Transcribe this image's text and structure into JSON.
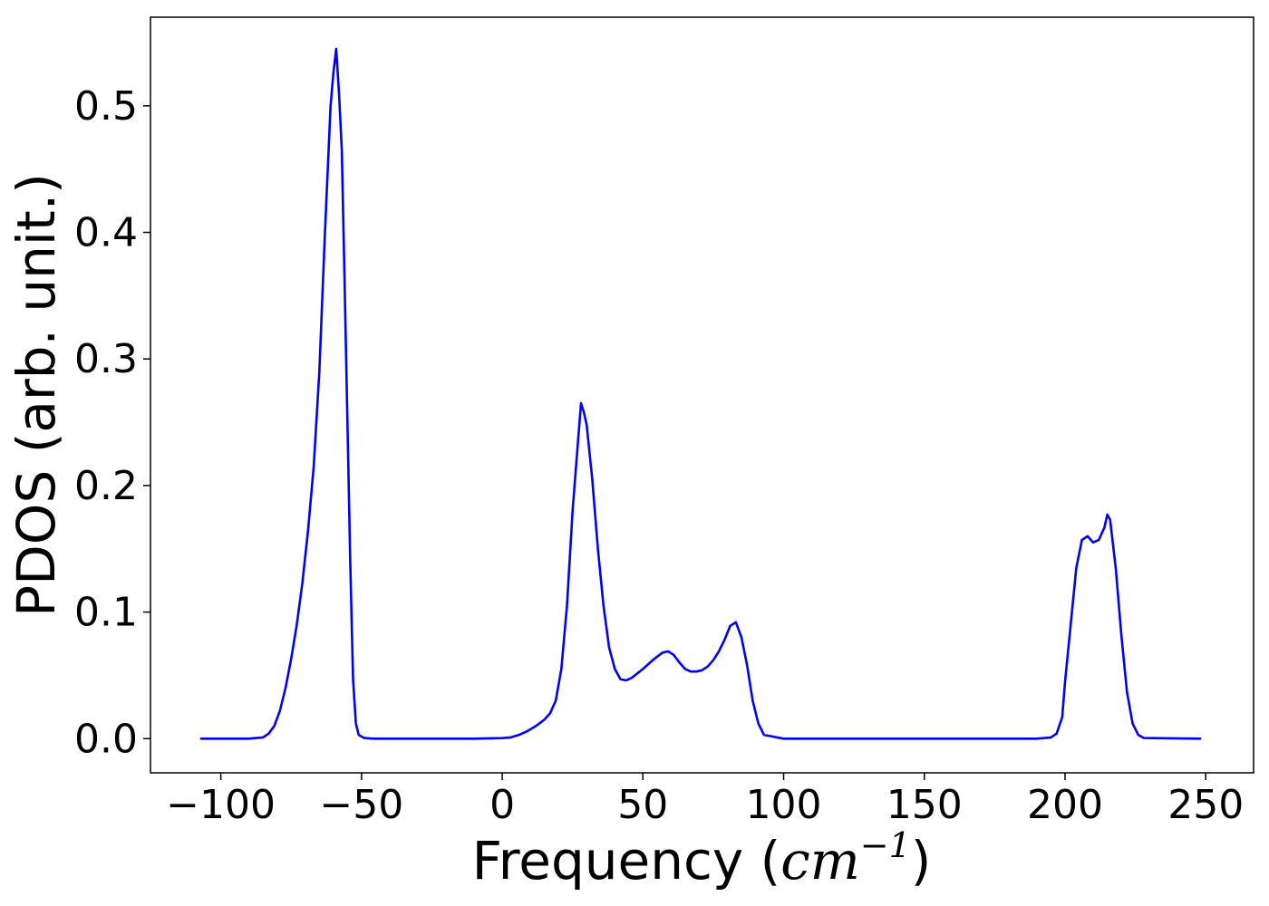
{
  "chart_data": {
    "type": "line",
    "title": "",
    "xlabel_text": "Frequency (",
    "xlabel_math": "cm",
    "xlabel_sup": "−1",
    "xlabel_close": ")",
    "ylabel": "PDOS (arb. unit.)",
    "xlim": [
      -125,
      267
    ],
    "ylim": [
      -0.027,
      0.57
    ],
    "xticks": [
      -100,
      -50,
      0,
      50,
      100,
      150,
      200,
      250
    ],
    "xtick_labels": [
      "−100",
      "−50",
      "0",
      "50",
      "100",
      "150",
      "200",
      "250"
    ],
    "yticks": [
      0.0,
      0.1,
      0.2,
      0.3,
      0.4,
      0.5
    ],
    "ytick_labels": [
      "0.0",
      "0.1",
      "0.2",
      "0.3",
      "0.4",
      "0.5"
    ],
    "grid": false,
    "series": [
      {
        "color": "#0000ff",
        "x": [
          -107,
          -90,
          -85,
          -83,
          -81,
          -79,
          -77,
          -75,
          -73,
          -71,
          -69,
          -67,
          -65,
          -63,
          -61,
          -60,
          -59,
          -58,
          -57,
          -56,
          -55,
          -54,
          -53,
          -52,
          -51,
          -49,
          -47,
          -45,
          -30,
          -20,
          -10,
          0,
          3,
          6,
          9,
          12,
          15,
          17,
          19,
          21,
          23,
          25,
          27,
          28,
          29,
          30,
          32,
          34,
          36,
          38,
          40,
          42,
          44,
          46,
          50,
          54,
          57,
          59,
          61,
          63,
          65,
          67,
          69,
          71,
          73,
          75,
          77,
          79,
          81,
          83,
          85,
          87,
          89,
          91,
          93,
          100,
          150,
          190,
          195,
          197,
          199,
          200,
          202,
          204,
          206,
          208,
          210,
          212,
          214,
          215,
          216,
          218,
          220,
          222,
          224,
          226,
          228,
          248
        ],
        "y": [
          0,
          0,
          0.001,
          0.004,
          0.01,
          0.022,
          0.04,
          0.063,
          0.09,
          0.123,
          0.165,
          0.215,
          0.29,
          0.4,
          0.5,
          0.526,
          0.545,
          0.51,
          0.465,
          0.36,
          0.25,
          0.14,
          0.047,
          0.012,
          0.003,
          0.0005,
          0.0001,
          0,
          0,
          0,
          0,
          0.0004,
          0.001,
          0.003,
          0.006,
          0.01,
          0.015,
          0.02,
          0.03,
          0.055,
          0.105,
          0.18,
          0.237,
          0.265,
          0.258,
          0.248,
          0.205,
          0.15,
          0.105,
          0.072,
          0.055,
          0.047,
          0.046,
          0.048,
          0.055,
          0.063,
          0.068,
          0.069,
          0.066,
          0.06,
          0.055,
          0.053,
          0.053,
          0.054,
          0.057,
          0.062,
          0.069,
          0.078,
          0.089,
          0.092,
          0.08,
          0.058,
          0.03,
          0.012,
          0.003,
          0,
          0,
          0,
          0.001,
          0.004,
          0.017,
          0.045,
          0.09,
          0.135,
          0.157,
          0.16,
          0.155,
          0.157,
          0.167,
          0.177,
          0.173,
          0.135,
          0.082,
          0.037,
          0.012,
          0.003,
          0.0005,
          0
        ]
      }
    ]
  }
}
